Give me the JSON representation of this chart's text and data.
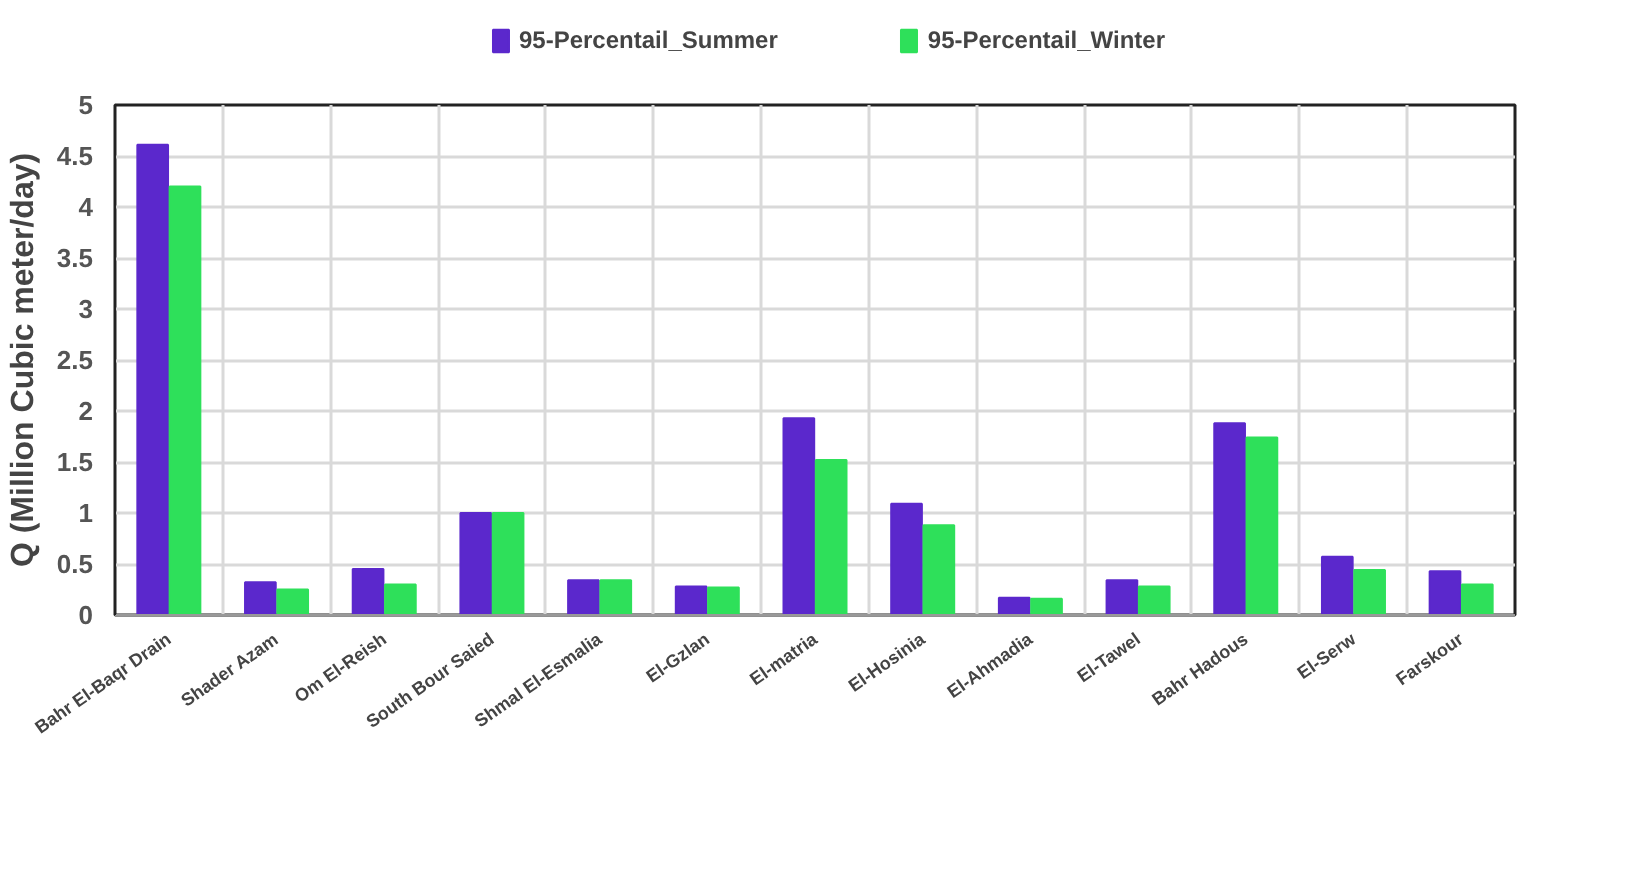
{
  "chart_data": {
    "type": "bar",
    "ylabel": "Q (Million Cubic meter/day)",
    "categories": [
      "Bahr El-Baqr Drain",
      "Shader Azam",
      "Om El-Reish",
      "South Bour Saied",
      "Shmal El-Esmalia",
      "El-Gzlan",
      "El-matria",
      "El-Hosinia",
      "El-Ahmadia",
      "El-Tawel",
      "Bahr Hadous",
      "El-Serw",
      "Farskour"
    ],
    "series": [
      {
        "name": "95-Percentail_Summer",
        "color": "#5b28cc",
        "values": [
          4.61,
          0.32,
          0.45,
          1.0,
          0.34,
          0.28,
          1.93,
          1.09,
          0.17,
          0.34,
          1.88,
          0.57,
          0.43
        ]
      },
      {
        "name": "95-Percentail_Winter",
        "color": "#2ee05a",
        "values": [
          4.2,
          0.25,
          0.3,
          1.0,
          0.34,
          0.27,
          1.52,
          0.88,
          0.16,
          0.28,
          1.74,
          0.44,
          0.3
        ]
      }
    ],
    "ylim": [
      0,
      5
    ],
    "yticks": [
      0,
      0.5,
      1,
      1.5,
      2,
      2.5,
      3,
      3.5,
      4,
      4.5,
      5
    ],
    "grid": true,
    "legend": "top"
  }
}
